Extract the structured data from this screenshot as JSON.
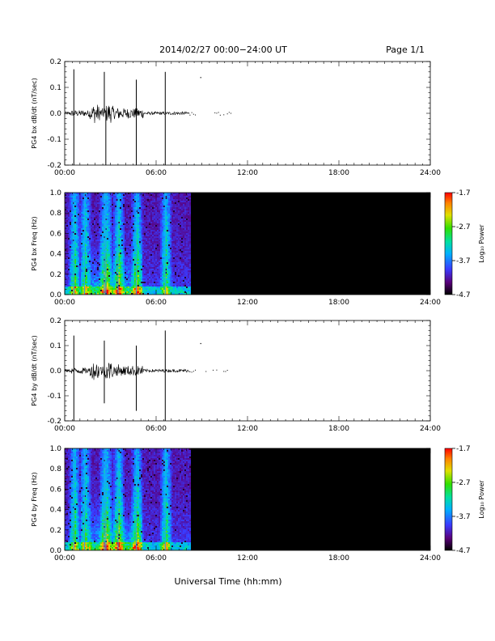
{
  "header": {
    "title": "2014/02/27  00:00−24:00 UT",
    "page": "Page 1/1"
  },
  "xaxis_label": "Universal Time (hh:mm)",
  "chart_data": [
    {
      "type": "line",
      "ylabel": "PG4 bx dB/dt (nT/sec)",
      "xlim": [
        0,
        24
      ],
      "ylim": [
        -0.2,
        0.2
      ],
      "xticks": [
        "00:00",
        "06:00",
        "12:00",
        "18:00",
        "24:00"
      ],
      "yticks": [
        "-0.2",
        "-0.1",
        "0.0",
        "0.1",
        "0.2"
      ],
      "data_end_hour": 11.0,
      "spikes": [
        {
          "x": 0.6,
          "y": 0.17
        },
        {
          "x": 0.6,
          "y": -0.2
        },
        {
          "x": 2.6,
          "y": 0.16
        },
        {
          "x": 2.7,
          "y": -0.2
        },
        {
          "x": 4.7,
          "y": 0.13
        },
        {
          "x": 4.7,
          "y": -0.2
        },
        {
          "x": 6.6,
          "y": 0.16
        },
        {
          "x": 6.6,
          "y": -0.2
        },
        {
          "x": 8.9,
          "y": 0.14
        }
      ]
    },
    {
      "type": "heatmap",
      "ylabel": "PG4 bx Freq (Hz)",
      "xlim": [
        0,
        24
      ],
      "ylim": [
        0,
        1.0
      ],
      "xticks": [
        "00:00",
        "06:00",
        "12:00",
        "18:00",
        "24:00"
      ],
      "yticks": [
        "0.0",
        "0.2",
        "0.4",
        "0.6",
        "0.8",
        "1.0"
      ],
      "data_end_hour": 8.2,
      "colorbar": {
        "label": "Log₁₀ Power",
        "ticks": [
          "-1.7",
          "-2.7",
          "-3.7",
          "-4.7"
        ],
        "range": [
          -4.7,
          -1.7
        ]
      },
      "bright_columns": [
        0.6,
        1.3,
        2.6,
        2.7,
        3.5,
        4.7,
        6.6
      ]
    },
    {
      "type": "line",
      "ylabel": "PG4 by dB/dt (nT/sec)",
      "xlim": [
        0,
        24
      ],
      "ylim": [
        -0.2,
        0.2
      ],
      "xticks": [
        "00:00",
        "06:00",
        "12:00",
        "18:00",
        "24:00"
      ],
      "yticks": [
        "-0.2",
        "-0.1",
        "0.0",
        "0.1",
        "0.2"
      ],
      "data_end_hour": 11.0,
      "spikes": [
        {
          "x": 0.6,
          "y": 0.14
        },
        {
          "x": 0.6,
          "y": -0.2
        },
        {
          "x": 2.6,
          "y": 0.12
        },
        {
          "x": 2.6,
          "y": -0.13
        },
        {
          "x": 4.7,
          "y": 0.1
        },
        {
          "x": 4.7,
          "y": -0.16
        },
        {
          "x": 6.6,
          "y": 0.16
        },
        {
          "x": 6.6,
          "y": -0.2
        },
        {
          "x": 8.9,
          "y": 0.11
        }
      ]
    },
    {
      "type": "heatmap",
      "ylabel": "PG4 by Freq (Hz)",
      "xlim": [
        0,
        24
      ],
      "ylim": [
        0,
        1.0
      ],
      "xticks": [
        "00:00",
        "06:00",
        "12:00",
        "18:00",
        "24:00"
      ],
      "yticks": [
        "0.0",
        "0.2",
        "0.4",
        "0.6",
        "0.8",
        "1.0"
      ],
      "data_end_hour": 8.2,
      "colorbar": {
        "label": "Log₁₀ Power",
        "ticks": [
          "-1.7",
          "-2.7",
          "-3.7",
          "-4.7"
        ],
        "range": [
          -4.7,
          -1.7
        ]
      },
      "bright_columns": [
        0.6,
        1.3,
        2.6,
        2.7,
        3.5,
        4.7,
        6.6
      ]
    }
  ]
}
